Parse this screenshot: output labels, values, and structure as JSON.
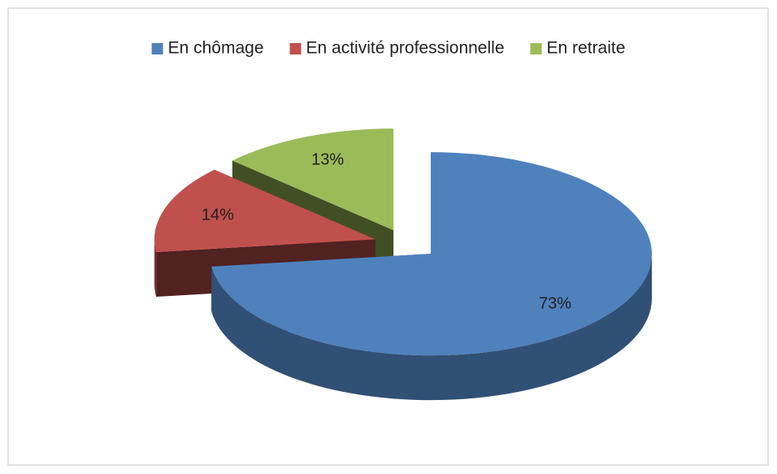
{
  "chart_data": {
    "type": "pie",
    "categories": [
      "En chômage",
      "En activité professionnelle",
      "En retraite"
    ],
    "values": [
      73,
      14,
      13
    ],
    "value_labels": [
      "73%",
      "14%",
      "13%"
    ],
    "colors": [
      "#4f81bd",
      "#c0504d",
      "#9bbb59"
    ],
    "legend": "top"
  }
}
